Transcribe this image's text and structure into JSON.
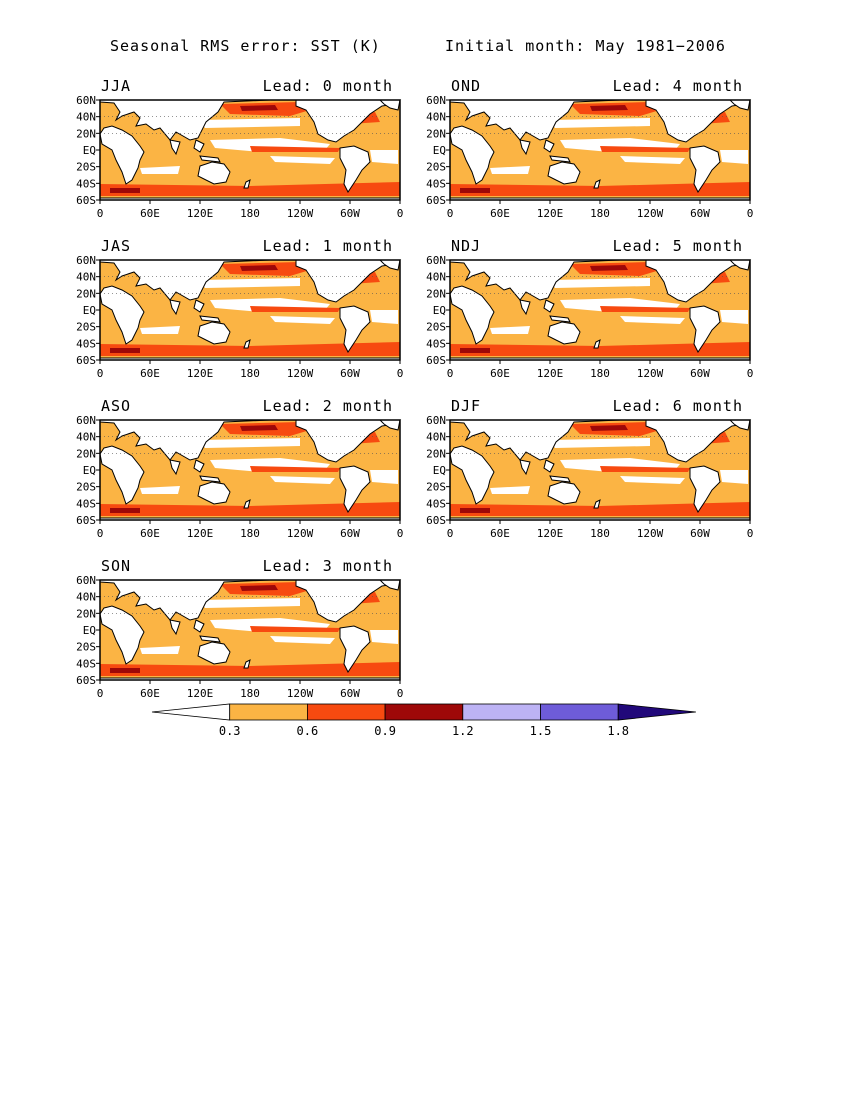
{
  "figure": {
    "title_left": "Seasonal RMS error: SST (K)",
    "title_right": "Initial month: May 1981−2006"
  },
  "panels": [
    {
      "season": "JJA",
      "lead": "Lead: 0 month"
    },
    {
      "season": "OND",
      "lead": "Lead: 4 month"
    },
    {
      "season": "JAS",
      "lead": "Lead: 1 month"
    },
    {
      "season": "NDJ",
      "lead": "Lead: 5 month"
    },
    {
      "season": "ASO",
      "lead": "Lead: 2 month"
    },
    {
      "season": "DJF",
      "lead": "Lead: 6 month"
    },
    {
      "season": "SON",
      "lead": "Lead: 3 month"
    }
  ],
  "axes": {
    "lat_ticks": [
      "60N",
      "40N",
      "20N",
      "EQ",
      "20S",
      "40S",
      "60S"
    ],
    "lon_ticks": [
      "0",
      "60E",
      "120E",
      "180",
      "120W",
      "60W",
      "0"
    ]
  },
  "colorbar": {
    "labels": [
      "0.3",
      "0.6",
      "0.9",
      "1.2",
      "1.5",
      "1.8"
    ],
    "colors": [
      "#ffffff",
      "#fbb444",
      "#f74a10",
      "#9e0808",
      "#bdb3f5",
      "#6e5cd9",
      "#21087a"
    ]
  }
}
